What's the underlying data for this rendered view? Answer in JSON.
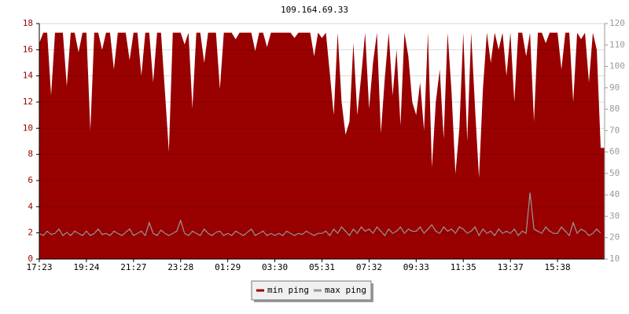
{
  "chart_data": {
    "type": "area-line",
    "title": "109.164.69.33",
    "categories": [
      "17:23",
      null,
      null,
      null,
      null,
      null,
      null,
      null,
      null,
      null,
      null,
      null,
      "19:24",
      null,
      null,
      null,
      null,
      null,
      null,
      null,
      null,
      null,
      null,
      null,
      "21:27",
      null,
      null,
      null,
      null,
      null,
      null,
      null,
      null,
      null,
      null,
      null,
      "23:28",
      null,
      null,
      null,
      null,
      null,
      null,
      null,
      null,
      null,
      null,
      null,
      "01:29",
      null,
      null,
      null,
      null,
      null,
      null,
      null,
      null,
      null,
      null,
      null,
      "03:30",
      null,
      null,
      null,
      null,
      null,
      null,
      null,
      null,
      null,
      null,
      null,
      "05:31",
      null,
      null,
      null,
      null,
      null,
      null,
      null,
      null,
      null,
      null,
      null,
      "07:32",
      null,
      null,
      null,
      null,
      null,
      null,
      null,
      null,
      null,
      null,
      null,
      "09:33",
      null,
      null,
      null,
      null,
      null,
      null,
      null,
      null,
      null,
      null,
      null,
      "11:35",
      null,
      null,
      null,
      null,
      null,
      null,
      null,
      null,
      null,
      null,
      null,
      "13:37",
      null,
      null,
      null,
      null,
      null,
      null,
      null,
      null,
      null,
      null,
      null,
      "15:38",
      null,
      null,
      null,
      null,
      null,
      null,
      null,
      null,
      null,
      null,
      null
    ],
    "series": [
      {
        "name": "min ping",
        "color": "#990000",
        "axis": "y",
        "values": [
          16.5,
          17.3,
          17.3,
          12.5,
          17.3,
          17.3,
          17.3,
          13.2,
          17.3,
          17.3,
          15.8,
          17.3,
          17.3,
          9.8,
          17.3,
          17.3,
          16.0,
          17.3,
          17.3,
          14.5,
          17.3,
          17.3,
          17.3,
          15.2,
          17.3,
          17.3,
          14.0,
          17.3,
          17.3,
          13.5,
          17.3,
          17.3,
          12.8,
          8.2,
          17.3,
          17.3,
          17.3,
          16.4,
          17.3,
          11.5,
          17.3,
          17.3,
          15.0,
          17.3,
          17.3,
          17.3,
          13.0,
          17.3,
          17.3,
          17.3,
          16.8,
          17.3,
          17.3,
          17.3,
          17.3,
          15.9,
          17.3,
          17.3,
          16.2,
          17.3,
          17.3,
          17.3,
          17.3,
          17.3,
          17.3,
          16.9,
          17.3,
          17.3,
          17.3,
          17.3,
          15.5,
          17.3,
          16.9,
          17.3,
          14.2,
          11.0,
          17.3,
          12.0,
          9.5,
          10.5,
          16.5,
          11.0,
          14.0,
          17.3,
          11.5,
          15.0,
          17.3,
          9.6,
          13.8,
          17.3,
          12.5,
          16.0,
          10.2,
          17.3,
          15.5,
          12.0,
          11.0,
          13.5,
          9.8,
          17.3,
          7.0,
          12.0,
          14.5,
          9.2,
          17.3,
          12.8,
          6.5,
          10.0,
          17.3,
          9.0,
          17.3,
          11.5,
          6.2,
          13.0,
          17.3,
          15.0,
          17.3,
          16.0,
          17.3,
          14.0,
          17.3,
          12.0,
          17.3,
          17.3,
          15.5,
          17.3,
          10.5,
          17.3,
          17.3,
          16.5,
          17.3,
          17.3,
          17.3,
          14.5,
          17.3,
          17.3,
          12.0,
          17.3,
          16.8,
          17.3,
          13.5,
          17.3,
          16.0,
          8.5
        ]
      },
      {
        "name": "max ping",
        "color": "#999999",
        "axis": "y2",
        "values": [
          22,
          21,
          23,
          21.5,
          22,
          24,
          21,
          22.5,
          21,
          23,
          22,
          21,
          23,
          21,
          22,
          24,
          21.5,
          22,
          21,
          23,
          22,
          21,
          22.5,
          24,
          21,
          22,
          23,
          21,
          27,
          22,
          21,
          23.5,
          22,
          21,
          22,
          23,
          28,
          22,
          21,
          23,
          22,
          21,
          24,
          22,
          21,
          22.5,
          23,
          21,
          22,
          21,
          23,
          22,
          21,
          22.5,
          24,
          21,
          22,
          23,
          21,
          22,
          21,
          22,
          21,
          23,
          22,
          21,
          22,
          21.5,
          23,
          22,
          21,
          22,
          22,
          23,
          21,
          24,
          22,
          25,
          23,
          21,
          24,
          22,
          25,
          23,
          24,
          22,
          25,
          23,
          21,
          24,
          22,
          23,
          25,
          22,
          24,
          23,
          23,
          25,
          22,
          24,
          26,
          23,
          22,
          25,
          23,
          24,
          22,
          25,
          24,
          22,
          23,
          25,
          21,
          24,
          22,
          23,
          21,
          24,
          22,
          23,
          22,
          24,
          21,
          23,
          22,
          41,
          24,
          23,
          22,
          25,
          23,
          22,
          22,
          25,
          23,
          21,
          27,
          22,
          24,
          23,
          21,
          22,
          24,
          22
        ]
      }
    ],
    "ylim": [
      0,
      18
    ],
    "yticks": [
      0,
      2,
      4,
      6,
      8,
      10,
      12,
      14,
      16,
      18
    ],
    "y2lim": [
      10,
      120
    ],
    "y2ticks": [
      10,
      20,
      30,
      40,
      50,
      60,
      70,
      80,
      90,
      100,
      110,
      120
    ],
    "grid": true
  }
}
